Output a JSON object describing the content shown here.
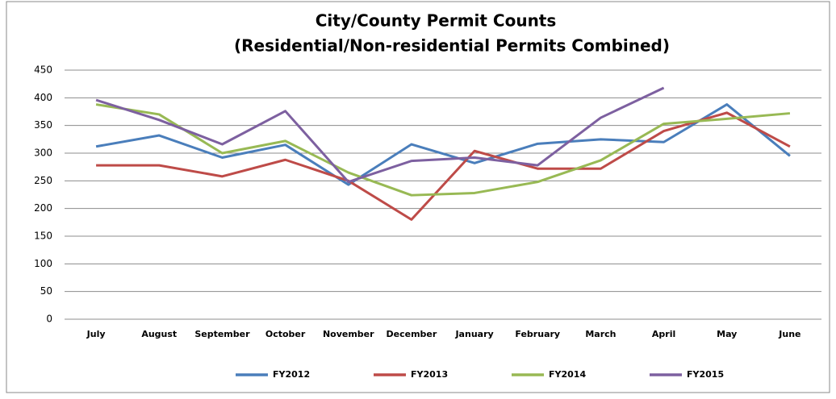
{
  "chart_data": {
    "type": "line",
    "title": "City/County Permit Counts",
    "subtitle": "(Residential/Non-residential Permits Combined)",
    "categories": [
      "July",
      "August",
      "September",
      "October",
      "November",
      "December",
      "January",
      "February",
      "March",
      "April",
      "May",
      "June"
    ],
    "series": [
      {
        "name": "FY2012",
        "color": "#4a7ebb",
        "values": [
          312,
          332,
          292,
          315,
          243,
          316,
          282,
          317,
          325,
          320,
          388,
          295
        ]
      },
      {
        "name": "FY2013",
        "color": "#be4b48",
        "values": [
          278,
          278,
          258,
          288,
          250,
          180,
          304,
          272,
          272,
          340,
          373,
          312
        ]
      },
      {
        "name": "FY2014",
        "color": "#98b954",
        "values": [
          388,
          370,
          300,
          322,
          265,
          224,
          228,
          248,
          287,
          353,
          362,
          372
        ]
      },
      {
        "name": "FY2015",
        "color": "#7d60a0",
        "values": [
          396,
          360,
          316,
          376,
          248,
          286,
          292,
          278,
          364,
          418,
          null,
          null
        ]
      }
    ],
    "ylim": [
      0,
      450
    ],
    "yticks": [
      0,
      50,
      100,
      150,
      200,
      250,
      300,
      350,
      400,
      450
    ],
    "grid": true,
    "legend": "bottom"
  }
}
